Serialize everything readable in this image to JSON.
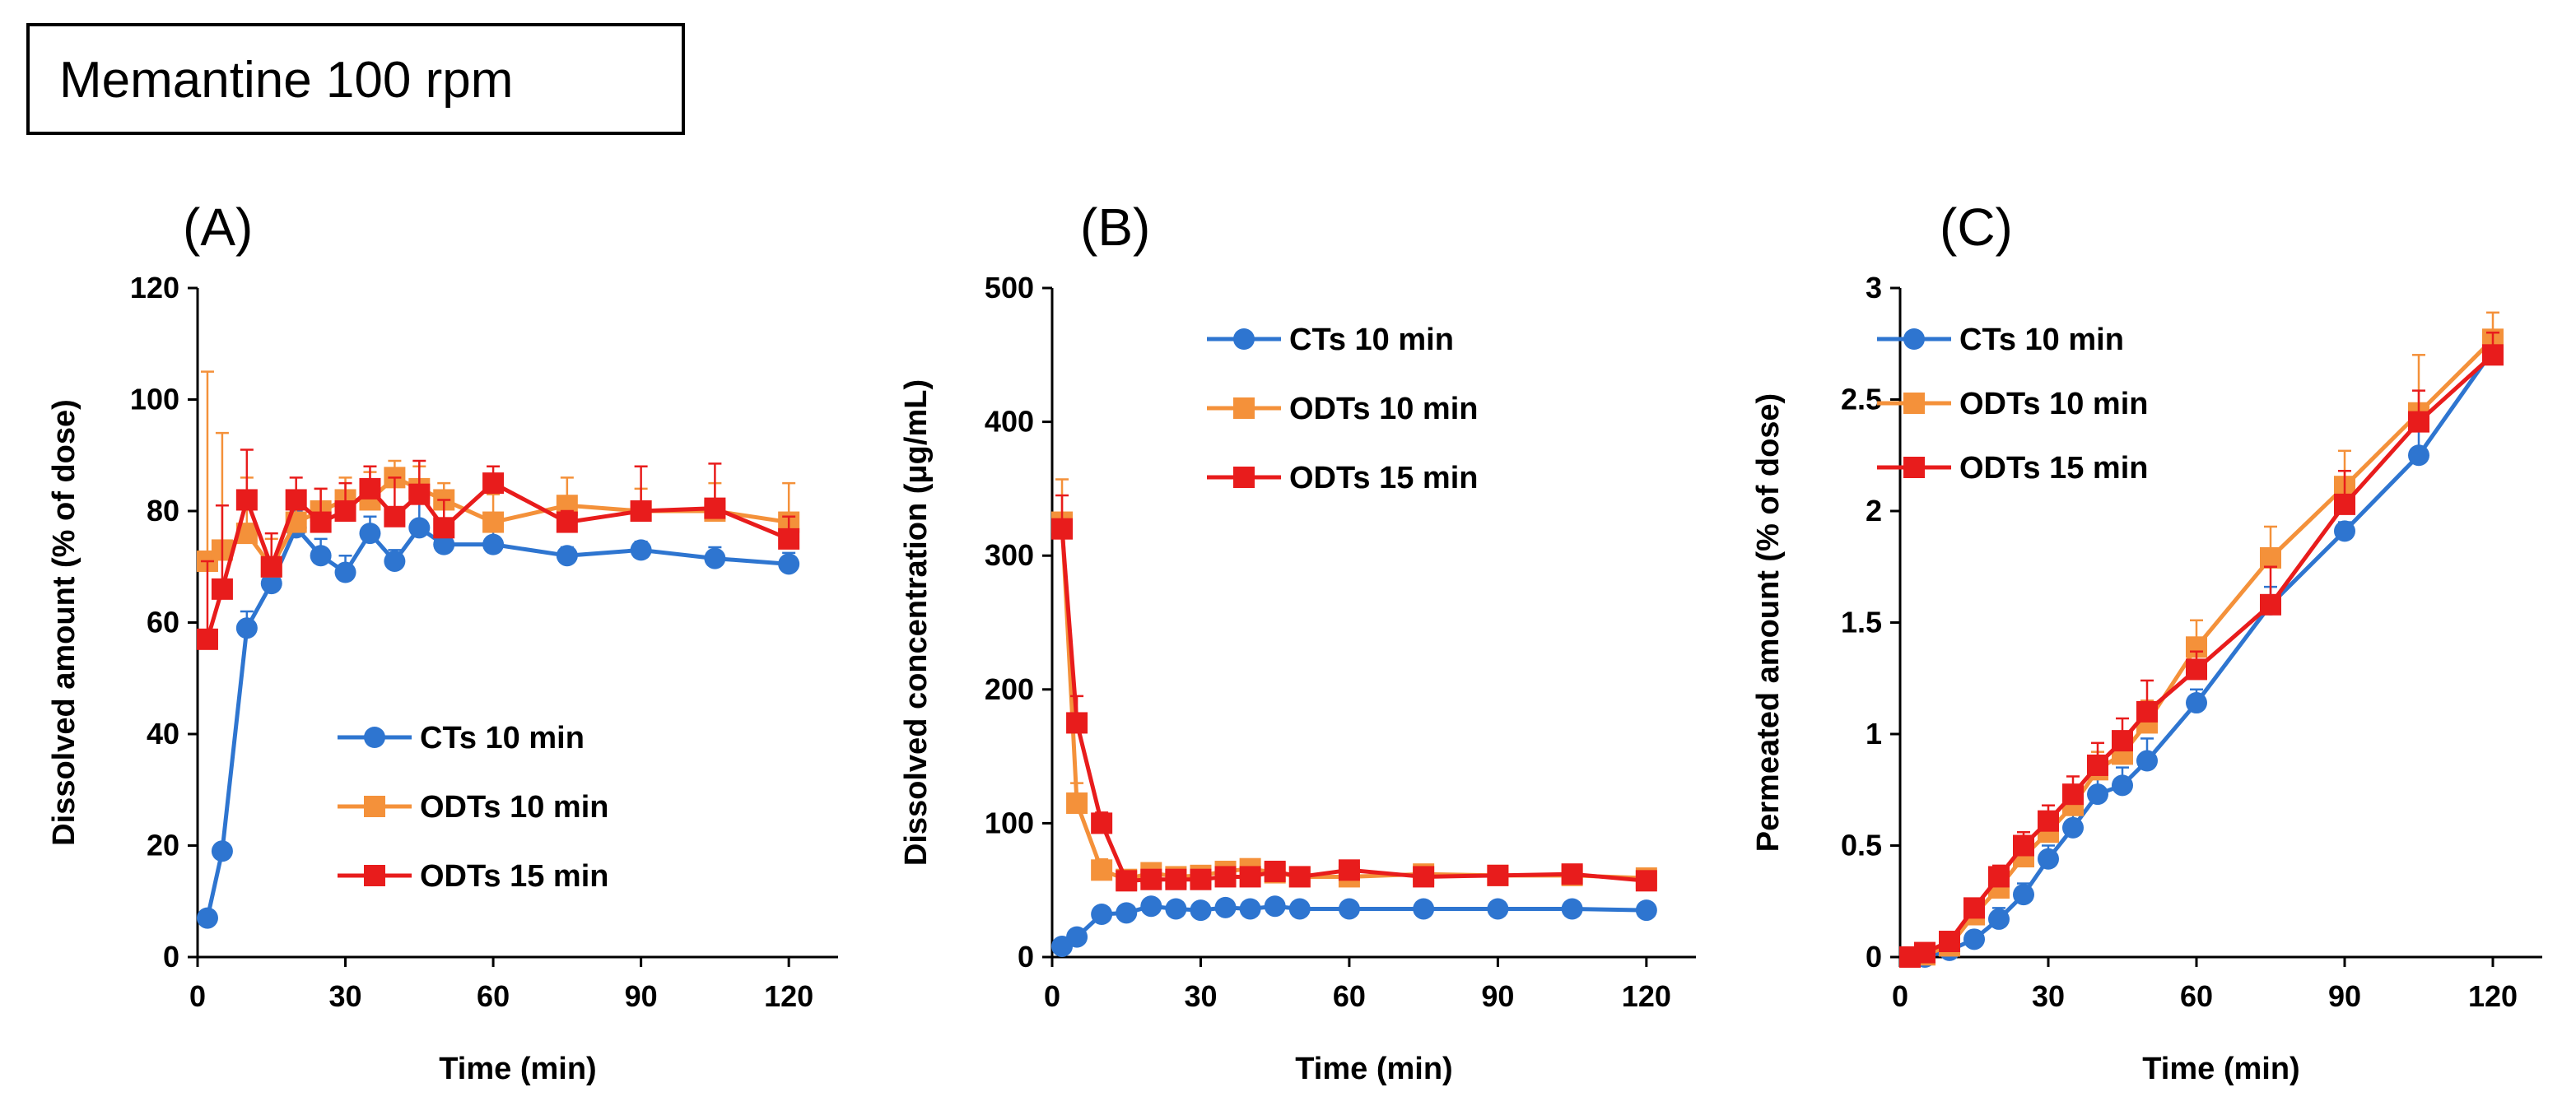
{
  "figure_title": "Memantine  100 rpm",
  "colors": {
    "CTs": "#2E75D0",
    "ODTs10": "#F4913A",
    "ODTs15": "#E81C1C"
  },
  "chart_data": [
    {
      "panel": "(A)",
      "type": "line",
      "xlabel": "Time  (min)",
      "ylabel": "Dissolved amount (% of dose)",
      "xlim": [
        0,
        130
      ],
      "ylim": [
        0,
        120
      ],
      "xticks": [
        0,
        30,
        60,
        90,
        120
      ],
      "yticks": [
        0,
        20,
        40,
        60,
        80,
        100,
        120
      ],
      "ytick_labels": [
        "0",
        "20",
        "40",
        "60",
        "80",
        "100",
        "120"
      ],
      "legend_position": "bottom-right",
      "series": [
        {
          "name": "CTs 10 min",
          "marker": "circle",
          "color_key": "CTs",
          "x": [
            2,
            5,
            10,
            15,
            20,
            25,
            30,
            35,
            40,
            45,
            50,
            60,
            75,
            90,
            105,
            120
          ],
          "y": [
            7,
            19,
            59,
            67,
            77,
            72,
            69,
            76,
            71,
            77,
            74,
            74,
            72,
            73,
            71.5,
            70.5
          ],
          "err": [
            1,
            1,
            3,
            2,
            3,
            3,
            3,
            3,
            2,
            5,
            3,
            3,
            1.5,
            1.5,
            2,
            2
          ]
        },
        {
          "name": "ODTs 10 min",
          "marker": "square",
          "color_key": "ODTs10",
          "x": [
            2,
            5,
            10,
            15,
            20,
            25,
            30,
            35,
            40,
            45,
            50,
            60,
            75,
            90,
            105,
            120
          ],
          "y": [
            71,
            73,
            76,
            70,
            78,
            80,
            82,
            82,
            86,
            84,
            82,
            78,
            81,
            80,
            80,
            78
          ],
          "err": [
            34,
            21,
            10,
            5,
            3,
            4,
            4,
            5,
            3,
            4,
            3,
            5,
            5,
            4,
            5,
            7
          ]
        },
        {
          "name": "ODTs 15 min",
          "marker": "square",
          "color_key": "ODTs15",
          "x": [
            2,
            5,
            10,
            15,
            20,
            25,
            30,
            35,
            40,
            45,
            50,
            60,
            75,
            90,
            105,
            120
          ],
          "y": [
            57,
            66,
            82,
            70,
            82,
            78,
            80,
            84,
            79,
            83,
            77,
            85,
            78,
            80,
            80.5,
            75
          ],
          "err": [
            14,
            15,
            9,
            6,
            4,
            6,
            5,
            4,
            7,
            6,
            5,
            3,
            2,
            8,
            8,
            4
          ]
        }
      ]
    },
    {
      "panel": "(B)",
      "type": "line",
      "xlabel": "Time  (min)",
      "ylabel": "Dissolved concentration (μg/mL)",
      "xlim": [
        0,
        130
      ],
      "ylim": [
        0,
        500
      ],
      "xticks": [
        0,
        30,
        60,
        90,
        120
      ],
      "yticks": [
        0,
        100,
        200,
        300,
        400,
        500
      ],
      "ytick_labels": [
        "0",
        "100",
        "200",
        "300",
        "400",
        "500"
      ],
      "legend_position": "top-right",
      "series": [
        {
          "name": "CTs 10 min",
          "marker": "circle",
          "color_key": "CTs",
          "x": [
            2,
            5,
            10,
            15,
            20,
            25,
            30,
            35,
            40,
            45,
            50,
            60,
            75,
            90,
            105,
            120
          ],
          "y": [
            8,
            15,
            32,
            33,
            38,
            36,
            35,
            37,
            36,
            38,
            36,
            36,
            36,
            36,
            36,
            35
          ],
          "err": [
            1,
            2,
            3,
            3,
            3,
            3,
            2,
            3,
            2,
            3,
            2,
            2,
            2,
            2,
            2,
            2
          ]
        },
        {
          "name": "ODTs 10 min",
          "marker": "square",
          "color_key": "ODTs10",
          "x": [
            2,
            5,
            10,
            15,
            20,
            25,
            30,
            35,
            40,
            45,
            50,
            60,
            75,
            90,
            105,
            120
          ],
          "y": [
            325,
            115,
            65,
            58,
            63,
            60,
            61,
            64,
            66,
            63,
            60,
            60,
            62,
            61,
            61,
            59
          ],
          "err": [
            32,
            15,
            8,
            5,
            5,
            4,
            4,
            4,
            5,
            4,
            4,
            6,
            6,
            5,
            5,
            5
          ]
        },
        {
          "name": "ODTs 15 min",
          "marker": "square",
          "color_key": "ODTs15",
          "x": [
            2,
            5,
            10,
            15,
            20,
            25,
            30,
            35,
            40,
            45,
            50,
            60,
            75,
            90,
            105,
            120
          ],
          "y": [
            320,
            175,
            100,
            57,
            58,
            58,
            58,
            60,
            60,
            64,
            60,
            65,
            60,
            61,
            62,
            57
          ],
          "err": [
            25,
            20,
            8,
            5,
            4,
            4,
            4,
            4,
            4,
            4,
            4,
            4,
            4,
            4,
            4,
            5
          ]
        }
      ]
    },
    {
      "panel": "(C)",
      "type": "line",
      "xlabel": "Time  (min)",
      "ylabel": "Permeated amount (% of dose)",
      "xlim": [
        0,
        130
      ],
      "ylim": [
        0,
        3
      ],
      "xticks": [
        0,
        30,
        60,
        90,
        120
      ],
      "yticks": [
        0,
        0.5,
        1,
        1.5,
        2,
        2.5,
        3
      ],
      "ytick_labels": [
        "0",
        "0.5",
        "1",
        "1.5",
        "2",
        "2.5",
        "3"
      ],
      "legend_position": "top-left",
      "series": [
        {
          "name": "CTs 10 min",
          "marker": "circle",
          "color_key": "CTs",
          "x": [
            2,
            5,
            10,
            15,
            20,
            25,
            30,
            35,
            40,
            45,
            50,
            60,
            75,
            90,
            105,
            120
          ],
          "y": [
            0,
            0,
            0.03,
            0.08,
            0.17,
            0.28,
            0.44,
            0.58,
            0.73,
            0.77,
            0.88,
            1.14,
            1.58,
            1.91,
            2.25,
            2.72
          ],
          "err": [
            0,
            0,
            0.02,
            0.03,
            0.05,
            0.05,
            0.06,
            0.08,
            0.08,
            0.08,
            0.1,
            0.06,
            0.08,
            0.04,
            0.14,
            0.05
          ]
        },
        {
          "name": "ODTs 10 min",
          "marker": "square",
          "color_key": "ODTs10",
          "x": [
            2,
            5,
            10,
            15,
            20,
            25,
            30,
            35,
            40,
            45,
            50,
            60,
            75,
            90,
            105,
            120
          ],
          "y": [
            0,
            0.01,
            0.05,
            0.19,
            0.31,
            0.45,
            0.56,
            0.68,
            0.84,
            0.91,
            1.05,
            1.39,
            1.79,
            2.11,
            2.44,
            2.77
          ],
          "err": [
            0,
            0.01,
            0.02,
            0.04,
            0.05,
            0.06,
            0.06,
            0.07,
            0.08,
            0.08,
            0.1,
            0.12,
            0.14,
            0.16,
            0.26,
            0.12
          ]
        },
        {
          "name": "ODTs 15 min",
          "marker": "square",
          "color_key": "ODTs15",
          "x": [
            2,
            5,
            10,
            15,
            20,
            25,
            30,
            35,
            40,
            45,
            50,
            60,
            75,
            90,
            105,
            120
          ],
          "y": [
            0,
            0.02,
            0.07,
            0.22,
            0.36,
            0.5,
            0.61,
            0.73,
            0.86,
            0.97,
            1.1,
            1.29,
            1.58,
            2.03,
            2.4,
            2.7
          ],
          "err": [
            0,
            0.01,
            0.02,
            0.04,
            0.05,
            0.06,
            0.07,
            0.08,
            0.1,
            0.1,
            0.14,
            0.08,
            0.17,
            0.15,
            0.14,
            0.1
          ]
        }
      ]
    }
  ]
}
